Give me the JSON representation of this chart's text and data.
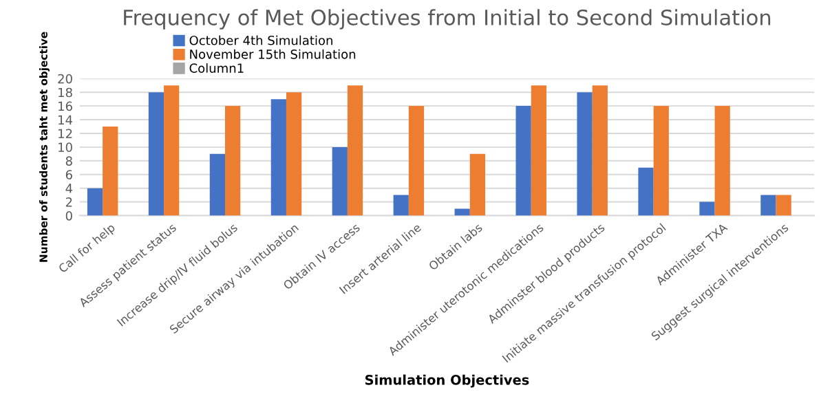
{
  "chart_data": {
    "type": "bar",
    "title": "Frequency of Met Objectives from Initial to Second Simulation",
    "xlabel": "Simulation Objectives",
    "ylabel": "Number of students taht met objective",
    "categories": [
      "Call for help",
      "Assess patient status",
      "Increase drip/IV fluid bolus",
      "Secure airway via intubation",
      "Obtain IV access",
      "Insert arterial line",
      "Obtain labs",
      "Administer uterotonic medications",
      "Adminster blood products",
      "Initiate massive transfusion protocol",
      "Administer TXA",
      "Suggest surgical interventions"
    ],
    "series": [
      {
        "name": "October 4th Simulation",
        "color": "#4472c4",
        "values": [
          4,
          18,
          9,
          17,
          10,
          3,
          1,
          16,
          18,
          7,
          2,
          3
        ]
      },
      {
        "name": "November 15th Simulation",
        "color": "#ed7d31",
        "values": [
          13,
          19,
          16,
          18,
          19,
          16,
          9,
          19,
          19,
          16,
          16,
          3
        ]
      },
      {
        "name": "Column1",
        "color": "#a5a5a5",
        "values": [
          null,
          null,
          null,
          null,
          null,
          null,
          null,
          null,
          null,
          null,
          null,
          null
        ]
      }
    ],
    "ylim": [
      0,
      20
    ],
    "yticks": [
      0,
      2,
      4,
      6,
      8,
      10,
      12,
      14,
      16,
      18,
      20
    ],
    "grid": "y",
    "legend": "top"
  }
}
